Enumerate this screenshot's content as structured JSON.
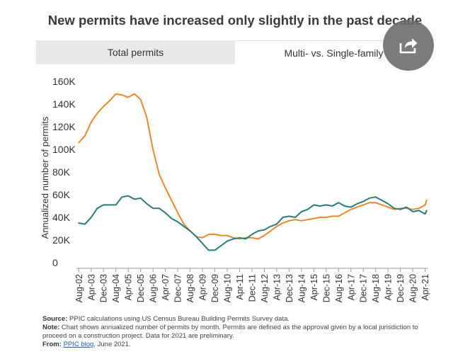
{
  "title": "New permits have increased only slightly in the past decade",
  "tabs": [
    {
      "label": "Total permits",
      "active": false
    },
    {
      "label": "Multi- vs. Single-family",
      "active": true
    }
  ],
  "share_icon": "share-arrow-icon",
  "colors": {
    "single_family": "#e8892b",
    "multi_family": "#2a7a7a",
    "tab_inactive_bg": "#e9e9e9",
    "share_bg": "#696969"
  },
  "chart_data": {
    "type": "line",
    "title": "",
    "xlabel": "",
    "ylabel": "Annualized number of permits",
    "ylim": [
      0,
      160000
    ],
    "y_ticks": [
      0,
      20000,
      40000,
      60000,
      80000,
      100000,
      120000,
      140000,
      160000
    ],
    "y_tick_labels": [
      "0",
      "20K",
      "40K",
      "60K",
      "80K",
      "100K",
      "120K",
      "140K",
      "160K"
    ],
    "x_tick_labels": [
      "Aug-02",
      "Apr-03",
      "Dec-03",
      "Aug-04",
      "Apr-05",
      "Dec-05",
      "Aug-06",
      "Apr-07",
      "Dec-07",
      "Aug-08",
      "Apr-09",
      "Dec-09",
      "Aug-10",
      "Apr-11",
      "Dec-11",
      "Aug-12",
      "Apr-13",
      "Dec-13",
      "Aug-14",
      "Apr-15",
      "Dec-15",
      "Aug-16",
      "Apr-17",
      "Dec-17",
      "Aug-18",
      "Apr-19",
      "Dec-19",
      "Aug-20",
      "Apr-21"
    ],
    "grid": false,
    "series": [
      {
        "color": "#e8892b",
        "points": [
          [
            "Aug-02",
            106000
          ],
          [
            "Dec-02",
            112000
          ],
          [
            "Apr-03",
            124000
          ],
          [
            "Aug-03",
            132000
          ],
          [
            "Dec-03",
            138000
          ],
          [
            "Apr-04",
            143000
          ],
          [
            "Aug-04",
            149000
          ],
          [
            "Dec-04",
            148000
          ],
          [
            "Apr-05",
            146000
          ],
          [
            "Aug-05",
            149000
          ],
          [
            "Dec-05",
            144000
          ],
          [
            "Apr-06",
            128000
          ],
          [
            "Aug-06",
            100000
          ],
          [
            "Dec-06",
            78000
          ],
          [
            "Apr-07",
            66000
          ],
          [
            "Aug-07",
            55000
          ],
          [
            "Dec-07",
            44000
          ],
          [
            "Apr-08",
            34000
          ],
          [
            "Aug-08",
            28000
          ],
          [
            "Dec-08",
            23000
          ],
          [
            "Apr-09",
            22000
          ],
          [
            "Aug-09",
            25000
          ],
          [
            "Dec-09",
            25000
          ],
          [
            "Apr-10",
            24000
          ],
          [
            "Aug-10",
            24000
          ],
          [
            "Dec-10",
            22000
          ],
          [
            "Apr-11",
            21000
          ],
          [
            "Aug-11",
            22000
          ],
          [
            "Dec-11",
            22000
          ],
          [
            "Apr-12",
            21000
          ],
          [
            "Aug-12",
            24000
          ],
          [
            "Dec-12",
            28000
          ],
          [
            "Apr-13",
            32000
          ],
          [
            "Aug-13",
            35000
          ],
          [
            "Dec-13",
            37000
          ],
          [
            "Apr-14",
            38000
          ],
          [
            "Aug-14",
            37000
          ],
          [
            "Dec-14",
            38000
          ],
          [
            "Apr-15",
            39000
          ],
          [
            "Aug-15",
            40000
          ],
          [
            "Dec-15",
            40000
          ],
          [
            "Apr-16",
            41000
          ],
          [
            "Aug-16",
            41000
          ],
          [
            "Dec-16",
            44000
          ],
          [
            "Apr-17",
            47000
          ],
          [
            "Aug-17",
            49000
          ],
          [
            "Dec-17",
            51000
          ],
          [
            "Apr-18",
            53000
          ],
          [
            "Aug-18",
            53000
          ],
          [
            "Dec-18",
            51000
          ],
          [
            "Apr-19",
            49000
          ],
          [
            "Aug-19",
            47000
          ],
          [
            "Dec-19",
            48000
          ],
          [
            "Apr-20",
            48000
          ],
          [
            "Aug-20",
            47000
          ],
          [
            "Dec-20",
            48000
          ],
          [
            "Apr-21",
            51000
          ],
          [
            "May-21",
            55000
          ]
        ]
      },
      {
        "color": "#2a7a7a",
        "points": [
          [
            "Aug-02",
            35000
          ],
          [
            "Dec-02",
            34000
          ],
          [
            "Apr-03",
            40000
          ],
          [
            "Aug-03",
            48000
          ],
          [
            "Dec-03",
            51000
          ],
          [
            "Apr-04",
            51000
          ],
          [
            "Aug-04",
            51000
          ],
          [
            "Dec-04",
            58000
          ],
          [
            "Apr-05",
            59000
          ],
          [
            "Aug-05",
            56000
          ],
          [
            "Dec-05",
            57000
          ],
          [
            "Apr-06",
            52000
          ],
          [
            "Aug-06",
            48000
          ],
          [
            "Dec-06",
            48000
          ],
          [
            "Apr-07",
            44000
          ],
          [
            "Aug-07",
            39000
          ],
          [
            "Dec-07",
            36000
          ],
          [
            "Apr-08",
            32000
          ],
          [
            "Aug-08",
            28000
          ],
          [
            "Dec-08",
            23000
          ],
          [
            "Apr-09",
            17000
          ],
          [
            "Aug-09",
            11000
          ],
          [
            "Dec-09",
            11000
          ],
          [
            "Apr-10",
            15000
          ],
          [
            "Aug-10",
            19000
          ],
          [
            "Dec-10",
            21000
          ],
          [
            "Apr-11",
            22000
          ],
          [
            "Aug-11",
            21000
          ],
          [
            "Dec-11",
            25000
          ],
          [
            "Apr-12",
            28000
          ],
          [
            "Aug-12",
            29000
          ],
          [
            "Dec-12",
            32000
          ],
          [
            "Apr-13",
            34000
          ],
          [
            "Aug-13",
            40000
          ],
          [
            "Dec-13",
            41000
          ],
          [
            "Apr-14",
            40000
          ],
          [
            "Aug-14",
            45000
          ],
          [
            "Dec-14",
            47000
          ],
          [
            "Apr-15",
            51000
          ],
          [
            "Aug-15",
            50000
          ],
          [
            "Dec-15",
            51000
          ],
          [
            "Apr-16",
            50000
          ],
          [
            "Aug-16",
            53000
          ],
          [
            "Dec-16",
            50000
          ],
          [
            "Apr-17",
            49000
          ],
          [
            "Aug-17",
            52000
          ],
          [
            "Dec-17",
            54000
          ],
          [
            "Apr-18",
            57000
          ],
          [
            "Aug-18",
            58000
          ],
          [
            "Dec-18",
            55000
          ],
          [
            "Apr-19",
            52000
          ],
          [
            "Aug-19",
            48000
          ],
          [
            "Dec-19",
            47000
          ],
          [
            "Apr-20",
            49000
          ],
          [
            "Aug-20",
            45000
          ],
          [
            "Dec-20",
            46000
          ],
          [
            "Apr-21",
            43000
          ],
          [
            "May-21",
            46000
          ]
        ]
      }
    ]
  },
  "notes": {
    "source_label": "Source:",
    "source_text": "PPIC calculations using US Census Bureau Building Permits Survey data.",
    "note_label": "Note:",
    "note_text": "Chart shows annualized number of permits by month. Permits are defined as the approval given by a local jurisdiction to proceed on a construction project. Data for 2021 are preliminary.",
    "from_label": "From:",
    "from_link": "PPIC blog",
    "from_suffix": ", June 2021."
  }
}
